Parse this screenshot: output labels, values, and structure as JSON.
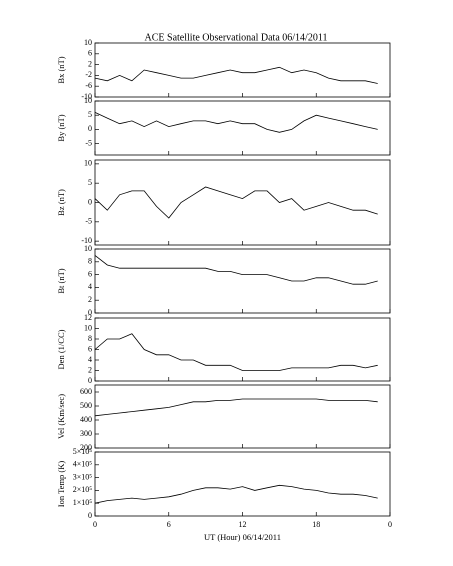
{
  "title": "ACE Satellite Observational Data   06/14/2011",
  "chart_data": [
    {
      "type": "line",
      "y_label": "Bx (nT)",
      "color": "#000000",
      "xlim": [
        0,
        24
      ],
      "ylim": [
        -10,
        10
      ],
      "yticks": [
        10,
        6,
        2,
        -2,
        -6,
        -10
      ],
      "x": [
        0,
        1,
        2,
        3,
        4,
        5,
        6,
        7,
        8,
        9,
        10,
        11,
        12,
        13,
        14,
        15,
        16,
        17,
        18,
        19,
        20,
        21,
        22,
        23
      ],
      "values": [
        -3,
        -4,
        -2,
        -4,
        0,
        -1,
        -2,
        -3,
        -3,
        -2,
        -1,
        0,
        -1,
        -1,
        0,
        1,
        -1,
        0,
        -1,
        -3,
        -4,
        -4,
        -4,
        -5
      ]
    },
    {
      "type": "line",
      "y_label": "By (nT)",
      "color": "#000000",
      "xlim": [
        0,
        24
      ],
      "ylim": [
        -9,
        10
      ],
      "yticks": [
        10,
        5,
        0,
        -5
      ],
      "x": [
        0,
        1,
        2,
        3,
        4,
        5,
        6,
        7,
        8,
        9,
        10,
        11,
        12,
        13,
        14,
        15,
        16,
        17,
        18,
        19,
        20,
        21,
        22,
        23
      ],
      "values": [
        6,
        4,
        2,
        3,
        1,
        3,
        1,
        2,
        3,
        3,
        2,
        3,
        2,
        2,
        0,
        -1,
        0,
        3,
        5,
        4,
        3,
        2,
        1,
        0
      ]
    },
    {
      "type": "line",
      "y_label": "Bz (nT)",
      "color": "#000000",
      "xlim": [
        0,
        24
      ],
      "ylim": [
        -11,
        11
      ],
      "yticks": [
        10,
        5,
        0,
        -5,
        -10
      ],
      "x": [
        0,
        1,
        2,
        3,
        4,
        5,
        6,
        7,
        8,
        9,
        10,
        11,
        12,
        13,
        14,
        15,
        16,
        17,
        18,
        19,
        20,
        21,
        22,
        23
      ],
      "values": [
        1,
        -2,
        2,
        3,
        3,
        -1,
        -4,
        0,
        2,
        4,
        3,
        2,
        1,
        3,
        3,
        0,
        1,
        -2,
        -1,
        0,
        -1,
        -2,
        -2,
        -3
      ]
    },
    {
      "type": "line",
      "y_label": "Bt (nT)",
      "color": "#000000",
      "xlim": [
        0,
        24
      ],
      "ylim": [
        0,
        10
      ],
      "yticks": [
        10,
        8,
        6,
        4,
        2,
        0
      ],
      "x": [
        0,
        1,
        2,
        3,
        4,
        5,
        6,
        7,
        8,
        9,
        10,
        11,
        12,
        13,
        14,
        15,
        16,
        17,
        18,
        19,
        20,
        21,
        22,
        23
      ],
      "values": [
        9,
        7.5,
        7,
        7,
        7,
        7,
        7,
        7,
        7,
        7,
        6.5,
        6.5,
        6,
        6,
        6,
        5.5,
        5,
        5,
        5.5,
        5.5,
        5,
        4.5,
        4.5,
        5
      ]
    },
    {
      "type": "line",
      "y_label": "Den (1/CC)",
      "color": "#000000",
      "xlim": [
        0,
        24
      ],
      "ylim": [
        0,
        12
      ],
      "yticks": [
        12,
        10,
        8,
        6,
        4,
        2,
        0
      ],
      "x": [
        0,
        1,
        2,
        3,
        4,
        5,
        6,
        7,
        8,
        9,
        10,
        11,
        12,
        13,
        14,
        15,
        16,
        17,
        18,
        19,
        20,
        21,
        22,
        23
      ],
      "values": [
        6,
        8,
        8,
        9,
        6,
        5,
        5,
        4,
        4,
        3,
        3,
        3,
        2,
        2,
        2,
        2,
        2.5,
        2.5,
        2.5,
        2.5,
        3,
        3,
        2.5,
        3
      ]
    },
    {
      "type": "line",
      "y_label": "Vel (Km/sec)",
      "color": "#000000",
      "xlim": [
        0,
        24
      ],
      "ylim": [
        200,
        650
      ],
      "yticks": [
        600,
        500,
        400,
        300,
        200
      ],
      "x": [
        0,
        1,
        2,
        3,
        4,
        5,
        6,
        7,
        8,
        9,
        10,
        11,
        12,
        13,
        14,
        15,
        16,
        17,
        18,
        19,
        20,
        21,
        22,
        23
      ],
      "values": [
        430,
        440,
        450,
        460,
        470,
        480,
        490,
        510,
        530,
        530,
        540,
        540,
        550,
        550,
        550,
        550,
        550,
        550,
        550,
        540,
        540,
        540,
        540,
        530
      ]
    },
    {
      "type": "line",
      "y_label": "Ion Temp (K)",
      "x_label": "UT (Hour)  06/14/2011",
      "color": "#000000",
      "xlim": [
        0,
        24
      ],
      "ylim": [
        0,
        500000
      ],
      "yticks": [
        {
          "value": 500000,
          "label": "5×10⁵"
        },
        {
          "value": 400000,
          "label": "4×10⁵"
        },
        {
          "value": 300000,
          "label": "3×10⁵"
        },
        {
          "value": 200000,
          "label": "2×10⁵"
        },
        {
          "value": 100000,
          "label": "1×10⁵"
        },
        0
      ],
      "xticks": [
        0,
        6,
        12,
        18,
        {
          "value": 24,
          "label": "0"
        }
      ],
      "x": [
        0,
        1,
        2,
        3,
        4,
        5,
        6,
        7,
        8,
        9,
        10,
        11,
        12,
        13,
        14,
        15,
        16,
        17,
        18,
        19,
        20,
        21,
        22,
        23
      ],
      "values": [
        100000,
        120000,
        130000,
        140000,
        130000,
        140000,
        150000,
        170000,
        200000,
        220000,
        220000,
        210000,
        230000,
        200000,
        220000,
        240000,
        230000,
        210000,
        200000,
        180000,
        170000,
        170000,
        160000,
        140000
      ]
    }
  ]
}
